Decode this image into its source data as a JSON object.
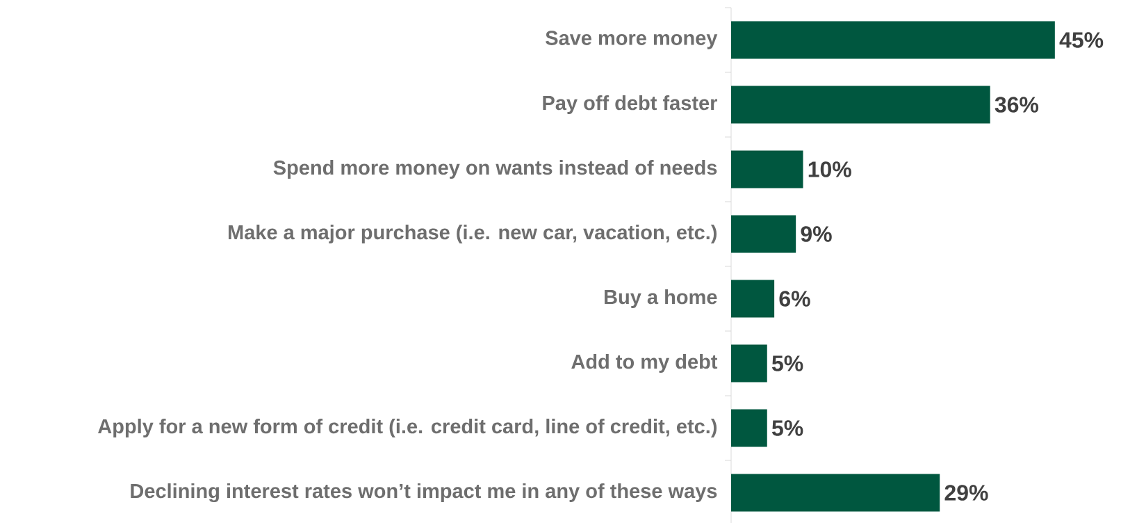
{
  "chart_data": {
    "type": "bar",
    "orientation": "horizontal",
    "categories": [
      "Save more money",
      "Pay off debt faster",
      "Spend more money on wants instead of needs",
      "Make a major purchase (i.e. new car, vacation, etc.)",
      "Buy a home",
      "Add to my debt",
      "Apply for a new form of credit (i.e. credit card, line of credit, etc.)",
      "Declining interest rates won’t impact me in any of these ways"
    ],
    "values": [
      45,
      36,
      10,
      9,
      6,
      5,
      5,
      29
    ],
    "value_labels": [
      "45%",
      "36%",
      "10%",
      "9%",
      "6%",
      "5%",
      "5%",
      "29%"
    ],
    "color": "#00573f",
    "tick_labels": "y"
  }
}
